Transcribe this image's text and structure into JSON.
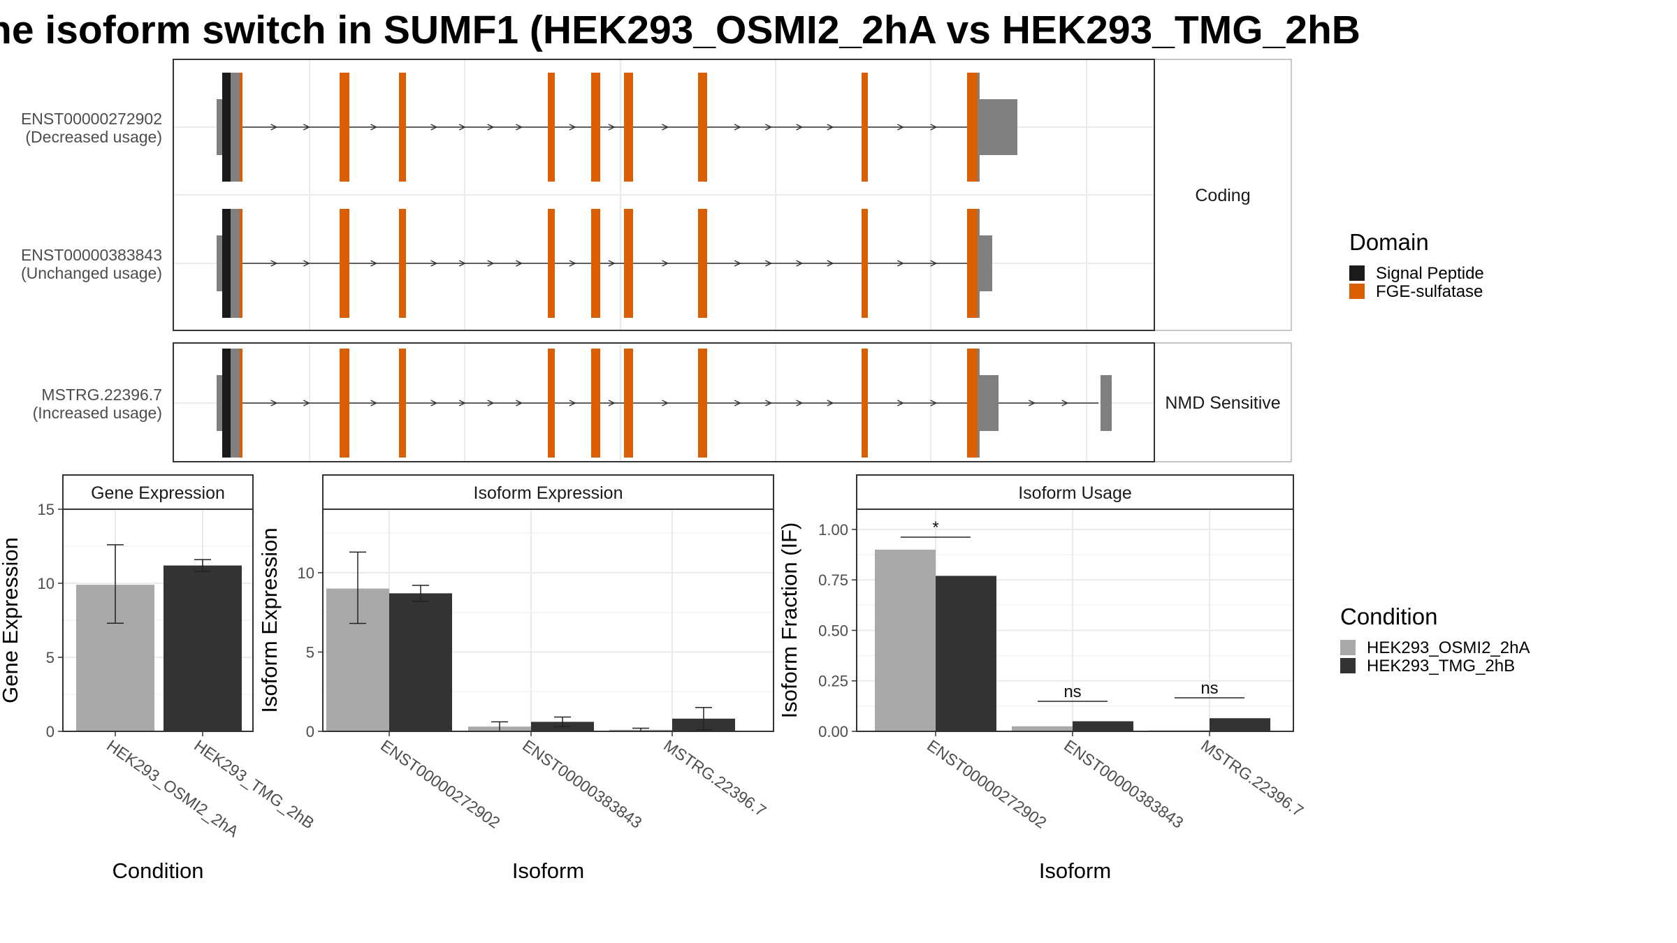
{
  "title": "he isoform switch in SUMF1 (HEK293_OSMI2_2hA vs HEK293_TMG_2hB",
  "colors": {
    "signal_peptide": "#1a1a1a",
    "fge_sulfatase": "#d95f02",
    "utr": "#808080",
    "condition_a": "#a9a9a9",
    "condition_b": "#333333"
  },
  "transcript_panel": {
    "facets": [
      "Coding",
      "NMD Sensitive"
    ],
    "transcripts": [
      {
        "id": "ENST00000272902",
        "usage": "(Decreased usage)",
        "facet": "Coding"
      },
      {
        "id": "ENST00000383843",
        "usage": "(Unchanged usage)",
        "facet": "Coding"
      },
      {
        "id": "MSTRG.22396.7",
        "usage": "(Increased usage)",
        "facet": "NMD Sensitive"
      }
    ]
  },
  "domain_legend": {
    "title": "Domain",
    "items": [
      {
        "label": "Signal Peptide",
        "color": "#1a1a1a"
      },
      {
        "label": "FGE-sulfatase",
        "color": "#d95f02"
      }
    ]
  },
  "condition_legend": {
    "title": "Condition",
    "items": [
      {
        "label": "HEK293_OSMI2_2hA",
        "color": "#a9a9a9"
      },
      {
        "label": "HEK293_TMG_2hB",
        "color": "#333333"
      }
    ]
  },
  "chart_data": [
    {
      "type": "bar",
      "title": "Gene Expression",
      "xlabel": "Condition",
      "ylabel": "Gene Expression",
      "ylim": [
        0,
        15
      ],
      "yticks": [
        0,
        5,
        10,
        15
      ],
      "categories": [
        "HEK293_OSMI2_2hA",
        "HEK293_TMG_2hB"
      ],
      "values": [
        9.9,
        11.2
      ],
      "errors": [
        [
          7.3,
          12.6
        ],
        [
          10.8,
          11.6
        ]
      ]
    },
    {
      "type": "bar",
      "title": "Isoform Expression",
      "xlabel": "Isoform",
      "ylabel": "Isoform Expression",
      "ylim": [
        0,
        14
      ],
      "yticks": [
        0,
        5,
        10
      ],
      "categories": [
        "ENST00000272902",
        "ENST00000383843",
        "MSTRG.22396.7"
      ],
      "series": [
        {
          "name": "HEK293_OSMI2_2hA",
          "values": [
            9.0,
            0.3,
            0.1
          ],
          "errors": [
            [
              6.8,
              11.3
            ],
            [
              0.0,
              0.6
            ],
            [
              0.0,
              0.2
            ]
          ]
        },
        {
          "name": "HEK293_TMG_2hB",
          "values": [
            8.7,
            0.6,
            0.8
          ],
          "errors": [
            [
              8.2,
              9.2
            ],
            [
              0.3,
              0.9
            ],
            [
              0.1,
              1.5
            ]
          ]
        }
      ]
    },
    {
      "type": "bar",
      "title": "Isoform Usage",
      "xlabel": "Isoform",
      "ylabel": "Isoform Fraction (IF)",
      "ylim": [
        0,
        1.1
      ],
      "yticks": [
        "0.00",
        "0.25",
        "0.50",
        "0.75",
        "1.00"
      ],
      "categories": [
        "ENST00000272902",
        "ENST00000383843",
        "MSTRG.22396.7"
      ],
      "series": [
        {
          "name": "HEK293_OSMI2_2hA",
          "values": [
            0.9,
            0.025,
            0.005
          ]
        },
        {
          "name": "HEK293_TMG_2hB",
          "values": [
            0.77,
            0.05,
            0.065
          ]
        }
      ],
      "significance": [
        "*",
        "ns",
        "ns"
      ]
    }
  ]
}
